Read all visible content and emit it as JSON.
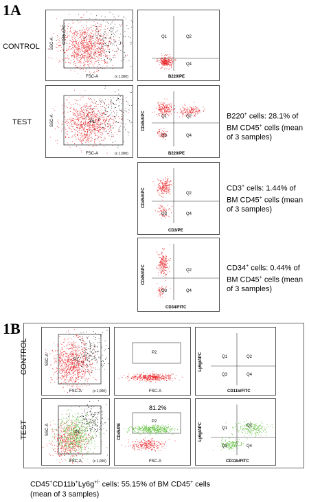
{
  "figure_1a": {
    "label": "1A",
    "rows": {
      "control": "CONTROL",
      "test": "TEST"
    },
    "scatter": {
      "x_axis": "FSC-A",
      "y_axis": "SSC-A",
      "x_units": "(x 1,000)",
      "y_units": "(x 1,000)",
      "x_ticks": [
        "50",
        "100",
        "150",
        "200",
        "250"
      ],
      "gate_label_control": "CD45 APC",
      "gate_label_test": "P1"
    },
    "quad_control": {
      "x_axis": "B220/PE",
      "quadrants": [
        "Q1",
        "Q2",
        "Q3",
        "Q4"
      ]
    },
    "quad_test_b220": {
      "x_axis": "B220/PE",
      "y_axis": "CD45/APC",
      "quadrants": [
        "Q1",
        "Q2",
        "Q3",
        "Q4"
      ]
    },
    "quad_test_cd3": {
      "x_axis": "CD3/PE",
      "y_axis": "CD45/APC",
      "quadrants": [
        "Q1",
        "Q2",
        "Q3",
        "Q4"
      ]
    },
    "quad_test_cd34": {
      "x_axis": "CD34/FITC",
      "y_axis": "CD45/APC",
      "quadrants": [
        "Q1",
        "Q2",
        "Q3",
        "Q4"
      ]
    },
    "notes": {
      "b220": {
        "marker": "B220",
        "line1_rest": " cells: 28.1% of",
        "line2": "BM CD45",
        "line2_rest": " cells (mean",
        "line3": "of 3 samples)"
      },
      "cd3": {
        "marker": "CD3",
        "line1_rest": " cells: 1.44% of",
        "line2": "BM CD45",
        "line2_rest": " cells (mean",
        "line3": "of 3 samples)"
      },
      "cd34": {
        "marker": "CD34",
        "line1_rest": " cells: 0.44% of",
        "line2": "BM CD45",
        "line2_rest": " cells (mean",
        "line3": "of 3 samples)"
      },
      "sup_plus": "+"
    }
  },
  "figure_1b": {
    "label": "1B",
    "rows": {
      "control": "CONTROL",
      "test": "TEST"
    },
    "scatter": {
      "x_axis": "FSC-A",
      "y_axis": "SSC-A",
      "units": "(x 1,000)",
      "gate": "P1"
    },
    "cd45_panel": {
      "x_axis": "FSC-A",
      "y_axis": "CD45/PE",
      "gate": "P2",
      "percent_test": "81.2%"
    },
    "quad_panel": {
      "x_axis": "CD11b/FITC",
      "y_axis": "Ly6g/APC",
      "quadrants": [
        "Q1",
        "Q2",
        "Q3",
        "Q4"
      ]
    },
    "caption": {
      "text1": "CD45",
      "text2": "CD11b",
      "text3": "Ly6g",
      "sup_pm": "+/-",
      "rest1": " cells: 55.15% of BM CD45",
      "rest2": " cells",
      "line2": "(mean of 3 samples)"
    }
  },
  "colors": {
    "red": "#e8262a",
    "green": "#5fbf3c",
    "dark": "#222222"
  }
}
